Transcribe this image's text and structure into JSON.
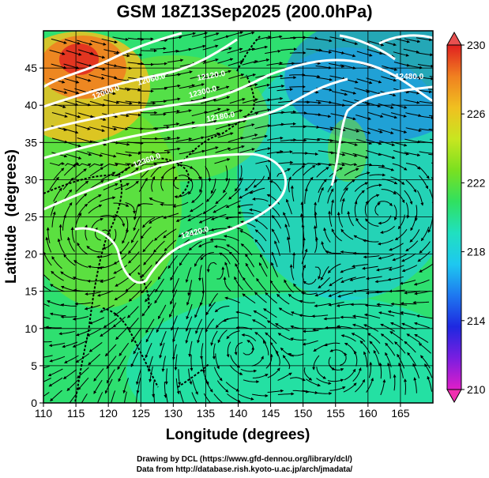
{
  "title": "GSM 18Z13Sep2025 (200.0hPa)",
  "x_axis": {
    "label": "Longitude (degrees)",
    "ticks": [
      "110",
      "115",
      "120",
      "125",
      "130",
      "135",
      "140",
      "145",
      "150",
      "155",
      "160",
      "165"
    ],
    "range": [
      110,
      170
    ]
  },
  "y_axis": {
    "label": "Latitude  (degrees)",
    "ticks": [
      "0",
      "5",
      "10",
      "15",
      "20",
      "25",
      "30",
      "35",
      "40",
      "45"
    ],
    "range": [
      0,
      50
    ]
  },
  "colorbar": {
    "ticks": [
      "210",
      "214",
      "218",
      "222",
      "226",
      "230"
    ],
    "range": [
      210,
      230
    ],
    "colors": [
      "#e01ec8",
      "#7a1ee0",
      "#1e28e0",
      "#1e78f0",
      "#1ec8f0",
      "#20e0c0",
      "#30e060",
      "#7ae020",
      "#c8e620",
      "#f0c020",
      "#f08020",
      "#e02020"
    ]
  },
  "contour_labels": [
    "12000.0",
    "12060.0",
    "12120.0",
    "12180.0",
    "12300.0",
    "12360.0",
    "12420.0",
    "12480.0"
  ],
  "credits": {
    "line1": "Drawing by DCL (https://www.gfd-dennou.org/library/dcl/)",
    "line2": "Data from http://database.rish.kyoto-u.ac.jp/arch/jmadata/"
  }
}
